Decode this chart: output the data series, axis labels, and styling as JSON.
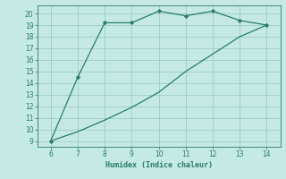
{
  "line1_x": [
    6,
    7,
    8,
    9,
    10,
    11,
    12,
    13,
    14
  ],
  "line1_y": [
    9,
    14.5,
    19.2,
    19.2,
    20.2,
    19.8,
    20.2,
    19.4,
    19.0
  ],
  "line2_x": [
    6,
    7,
    8,
    9,
    10,
    11,
    12,
    13,
    14
  ],
  "line2_y": [
    9,
    9.8,
    10.8,
    11.9,
    13.2,
    15.0,
    16.5,
    18.0,
    19.0
  ],
  "line_color": "#2a7a6a",
  "bg_color": "#c5eae5",
  "grid_color": "#9eccc6",
  "xlabel": "Humidex (Indice chaleur)",
  "xlim": [
    5.5,
    14.5
  ],
  "ylim": [
    8.5,
    20.7
  ],
  "xticks": [
    6,
    7,
    8,
    9,
    10,
    11,
    12,
    13,
    14
  ],
  "yticks": [
    9,
    10,
    11,
    12,
    13,
    14,
    15,
    16,
    17,
    18,
    19,
    20
  ],
  "marker": "D",
  "marker_size": 2.2,
  "linewidth": 0.9,
  "tick_fontsize": 5.5,
  "xlabel_fontsize": 6.0
}
